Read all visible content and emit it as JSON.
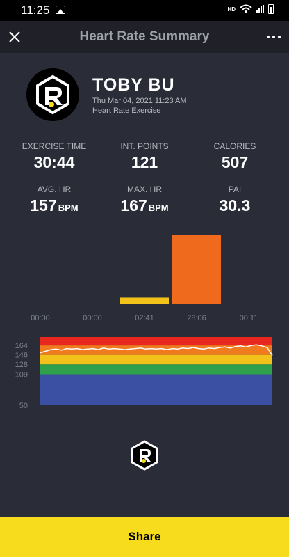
{
  "status_bar": {
    "time": "11:25",
    "network": "HD",
    "icons": [
      "image-icon",
      "wifi-icon",
      "signal-icon",
      "battery-icon"
    ]
  },
  "app_bar": {
    "title": "Heart Rate Summary",
    "close_icon": "close-icon",
    "more_icon": "more-icon"
  },
  "profile": {
    "name": "TOBY BU",
    "date": "Thu Mar 04, 2021 11:23 AM",
    "subtitle": "Heart Rate Exercise",
    "logo": "R-logo"
  },
  "stats": [
    {
      "label": "EXERCISE TIME",
      "value": "30:44",
      "unit": ""
    },
    {
      "label": "INT. POINTS",
      "value": "121",
      "unit": ""
    },
    {
      "label": "CALORIES",
      "value": "507",
      "unit": ""
    },
    {
      "label": "AVG. HR",
      "value": "157",
      "unit": "BPM"
    },
    {
      "label": "MAX. HR",
      "value": "167",
      "unit": "BPM"
    },
    {
      "label": "PAI",
      "value": "30.3",
      "unit": ""
    }
  ],
  "chart_data": [
    {
      "type": "bar",
      "categories": [
        "00:00",
        "00:00",
        "02:41",
        "28:06",
        "00:11"
      ],
      "values": [
        0,
        0,
        2.68,
        28.1,
        0.18
      ],
      "colors": [
        "#7a7d86",
        "#7a7d86",
        "#f2c21a",
        "#f06a1e",
        "#7a7d86"
      ]
    },
    {
      "type": "line",
      "y_ticks": [
        50,
        109,
        128,
        146,
        164
      ],
      "zones": [
        {
          "from": 50,
          "to": 109,
          "color": "#3b4fa3"
        },
        {
          "from": 109,
          "to": 128,
          "color": "#2fa04c"
        },
        {
          "from": 128,
          "to": 146,
          "color": "#f2c21a"
        },
        {
          "from": 146,
          "to": 164,
          "color": "#f07a1e"
        },
        {
          "from": 164,
          "to": 180,
          "color": "#e8281f"
        }
      ],
      "ylim": [
        50,
        180
      ],
      "series": [
        {
          "values": [
            150,
            153,
            156,
            157,
            155,
            158,
            157,
            158,
            156,
            157,
            158,
            156,
            159,
            157,
            158,
            157,
            156,
            157,
            158,
            159,
            157,
            158,
            157,
            158,
            156,
            158,
            157,
            159,
            158,
            160,
            158,
            157,
            159,
            158,
            160,
            161,
            159,
            162,
            163,
            161,
            164,
            165,
            163,
            160,
            145
          ]
        }
      ],
      "line_color": "#ffffff"
    }
  ],
  "share_button": {
    "label": "Share"
  }
}
